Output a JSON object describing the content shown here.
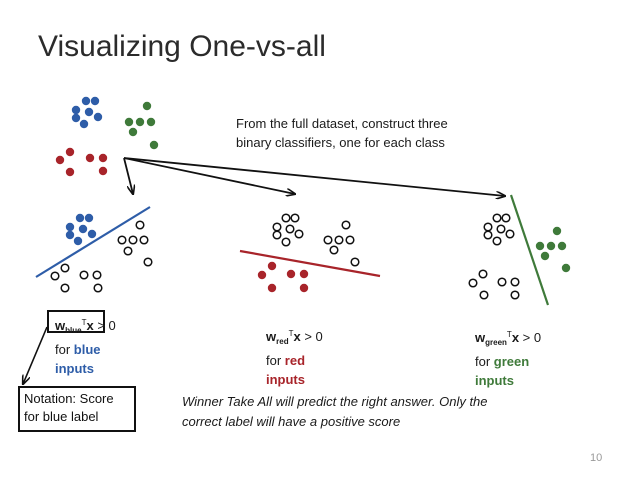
{
  "slide": {
    "title": "Visualizing One-vs-all",
    "intro_lines": [
      "From the full dataset, construct three",
      "binary classifiers, one for each class"
    ],
    "classifiers": {
      "blue": {
        "weight": "w",
        "subscript": "blue",
        "superscript": "T",
        "x": "x",
        "condition": " > 0",
        "for_text": "for ",
        "class_word": "blue",
        "inputs_word": "inputs",
        "color": "#2e5da8"
      },
      "red": {
        "weight": "w",
        "subscript": "red",
        "superscript": "T",
        "x": "x",
        "condition": " > 0",
        "for_text": "for ",
        "class_word": "red",
        "inputs_word": "inputs",
        "color": "#a8242a"
      },
      "green": {
        "weight": "w",
        "subscript": "green",
        "superscript": "T",
        "x": "x",
        "condition": " > 0",
        "for_text": "for ",
        "class_word": "green",
        "inputs_word": "inputs",
        "color": "#3f7a3a"
      }
    },
    "notation_lines": [
      "Notation: Score",
      "for blue label"
    ],
    "winner_lines": [
      "Winner Take All will predict the right answer. Only the",
      "correct label will have a positive score"
    ],
    "page_number": "10"
  },
  "colors": {
    "blue_point": "#2e5da8",
    "red_point": "#a8242a",
    "green_point": "#3f7a3a",
    "blue_line": "#2e5da8",
    "red_line": "#a8242a",
    "green_line": "#3f7a3a",
    "arrow": "#111111",
    "open_point": "#111111"
  }
}
